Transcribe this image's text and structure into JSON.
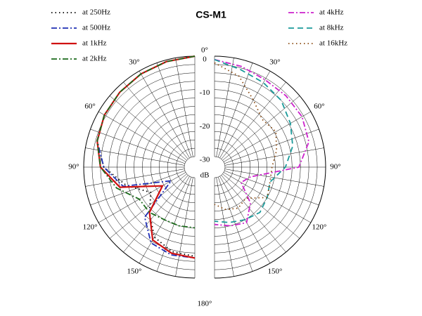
{
  "chart_data": {
    "type": "polar",
    "title": "CS-M1",
    "rlim": [
      -30,
      0
    ],
    "rticks": [
      0,
      -10,
      -20,
      -30
    ],
    "runit": "dB",
    "rgrid": [
      -27.5,
      -25,
      -22.5,
      -20,
      -17.5,
      -15,
      -12.5,
      -10,
      -7.5,
      -5,
      -2.5,
      0
    ],
    "thetaspokes": [
      0,
      10,
      20,
      30,
      40,
      50,
      60,
      70,
      80,
      90,
      100,
      110,
      120,
      130,
      140,
      150,
      160,
      170,
      180
    ],
    "thetaticks": [
      {
        "value": 0,
        "label": "0°"
      },
      {
        "value": 30,
        "label": "30°"
      },
      {
        "value": 60,
        "label": "60°"
      },
      {
        "value": 90,
        "label": "90°"
      },
      {
        "value": 120,
        "label": "120°"
      },
      {
        "value": 150,
        "label": "150°"
      },
      {
        "value": 180,
        "label": "180°"
      }
    ],
    "theta": [
      0,
      15,
      30,
      45,
      60,
      75,
      90,
      105,
      120,
      135,
      150,
      165,
      180
    ],
    "series": [
      {
        "name": "at 250Hz",
        "color": "#000000",
        "style": "dotted",
        "side": "left",
        "values": [
          0,
          -0.5,
          -1,
          -1.5,
          -2,
          -3,
          -6,
          -12,
          -18,
          -14,
          -9,
          -7,
          -6.5
        ]
      },
      {
        "name": "at 500Hz",
        "color": "#1f2fb4",
        "style": "dashdot",
        "side": "left",
        "values": [
          0,
          -0.5,
          -1,
          -1.5,
          -2,
          -3,
          -6,
          -11,
          -25,
          -12,
          -7,
          -6,
          -6
        ]
      },
      {
        "name": "at 1kHz",
        "color": "#d01010",
        "style": "solid",
        "side": "left",
        "values": [
          0,
          -0.5,
          -1,
          -1.5,
          -2,
          -3,
          -5,
          -10,
          -22,
          -14,
          -8,
          -6.5,
          -6
        ]
      },
      {
        "name": "at 2kHz",
        "color": "#1a6a1a",
        "style": "dashdot",
        "side": "left",
        "values": [
          0,
          -0.5,
          -1,
          -1.5,
          -2,
          -3,
          -5,
          -9,
          -14,
          -14,
          -15,
          -15,
          -15
        ]
      },
      {
        "name": "at 4kHz",
        "color": "#cc22cc",
        "style": "dashdot",
        "side": "right",
        "values": [
          -1,
          -2,
          -3,
          -3,
          -3,
          -4,
          -8,
          -22,
          -24,
          -18,
          -14,
          -15,
          -16
        ]
      },
      {
        "name": "at 8kHz",
        "color": "#1a9a9a",
        "style": "dashed",
        "side": "right",
        "values": [
          -1,
          -3,
          -4,
          -5,
          -7,
          -9,
          -12,
          -16,
          -15,
          -14,
          -15,
          -16,
          -17
        ]
      },
      {
        "name": "at 16kHz",
        "color": "#8a4a10",
        "style": "dotted",
        "side": "right",
        "values": [
          -2,
          -5,
          -10,
          -13,
          -12,
          -14,
          -16,
          -16,
          -15,
          -20,
          -19,
          -20,
          -22
        ]
      }
    ]
  }
}
